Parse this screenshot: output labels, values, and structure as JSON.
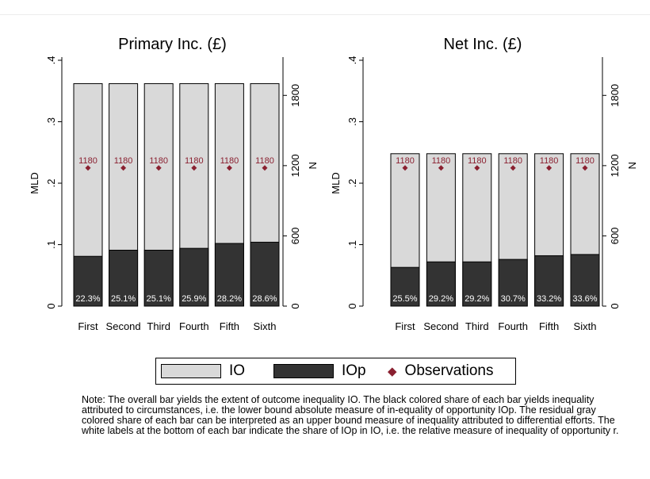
{
  "chart_data": [
    {
      "type": "bar",
      "title": "Primary Inc. (£)",
      "ylabel": "MLD",
      "y2label": "N",
      "ylim": [
        0,
        0.4
      ],
      "y2lim": [
        0,
        2100
      ],
      "yticks": [
        ".4",
        ".3",
        ".2",
        ".1",
        "0"
      ],
      "y2ticks": [
        "1800",
        "1200",
        "600",
        "0"
      ],
      "categories": [
        "First",
        "Second",
        "Third",
        "Fourth",
        "Fifth",
        "Sixth"
      ],
      "series": [
        {
          "name": "IO",
          "values": [
            0.362,
            0.362,
            0.362,
            0.362,
            0.362,
            0.362
          ]
        },
        {
          "name": "IOp",
          "values": [
            0.081,
            0.091,
            0.091,
            0.094,
            0.102,
            0.104
          ]
        },
        {
          "name": "Observations",
          "values": [
            1180,
            1180,
            1180,
            1180,
            1180,
            1180
          ]
        }
      ],
      "obs_labels": [
        "1180",
        "1180",
        "1180",
        "1180",
        "1180",
        "1180"
      ],
      "share_labels": [
        "22.3%",
        "25.1%",
        "25.1%",
        "25.9%",
        "28.2%",
        "28.6%"
      ]
    },
    {
      "type": "bar",
      "title": "Net Inc. (£)",
      "ylabel": "MLD",
      "y2label": "N",
      "ylim": [
        0,
        0.4
      ],
      "y2lim": [
        0,
        2100
      ],
      "yticks": [
        ".4",
        ".3",
        ".2",
        ".1",
        "0"
      ],
      "y2ticks": [
        "1800",
        "1200",
        "600",
        "0"
      ],
      "categories": [
        "First",
        "Second",
        "Third",
        "Fourth",
        "Fifth",
        "Sixth"
      ],
      "series": [
        {
          "name": "IO",
          "values": [
            0.248,
            0.248,
            0.248,
            0.248,
            0.248,
            0.248
          ]
        },
        {
          "name": "IOp",
          "values": [
            0.063,
            0.072,
            0.072,
            0.076,
            0.082,
            0.084
          ]
        },
        {
          "name": "Observations",
          "values": [
            1180,
            1180,
            1180,
            1180,
            1180,
            1180
          ]
        }
      ],
      "obs_labels": [
        "1180",
        "1180",
        "1180",
        "1180",
        "1180",
        "1180"
      ],
      "share_labels": [
        "25.5%",
        "29.2%",
        "29.2%",
        "30.7%",
        "33.2%",
        "33.6%"
      ]
    }
  ],
  "legend": {
    "io_label": "IO",
    "iop_label": "IOp",
    "obs_label": "Observations",
    "marker_symbol": "◆"
  },
  "colors": {
    "io": "#d9d9d9",
    "iop": "#333333",
    "observations": "#8a2030"
  },
  "note": "Note: The overall bar yields the extent of outcome inequality IO. The black colored share of each bar yields inequality attributed to circumstances, i.e. the lower bound absolute measure of in-equality of opportunity IOp. The residual gray colored share of each bar can be interpreted as an upper bound measure of inequality attributed to differential efforts. The white labels at the bottom of each bar indicate the share of IOp in IO, i.e. the relative measure of inequality of opportunity r."
}
